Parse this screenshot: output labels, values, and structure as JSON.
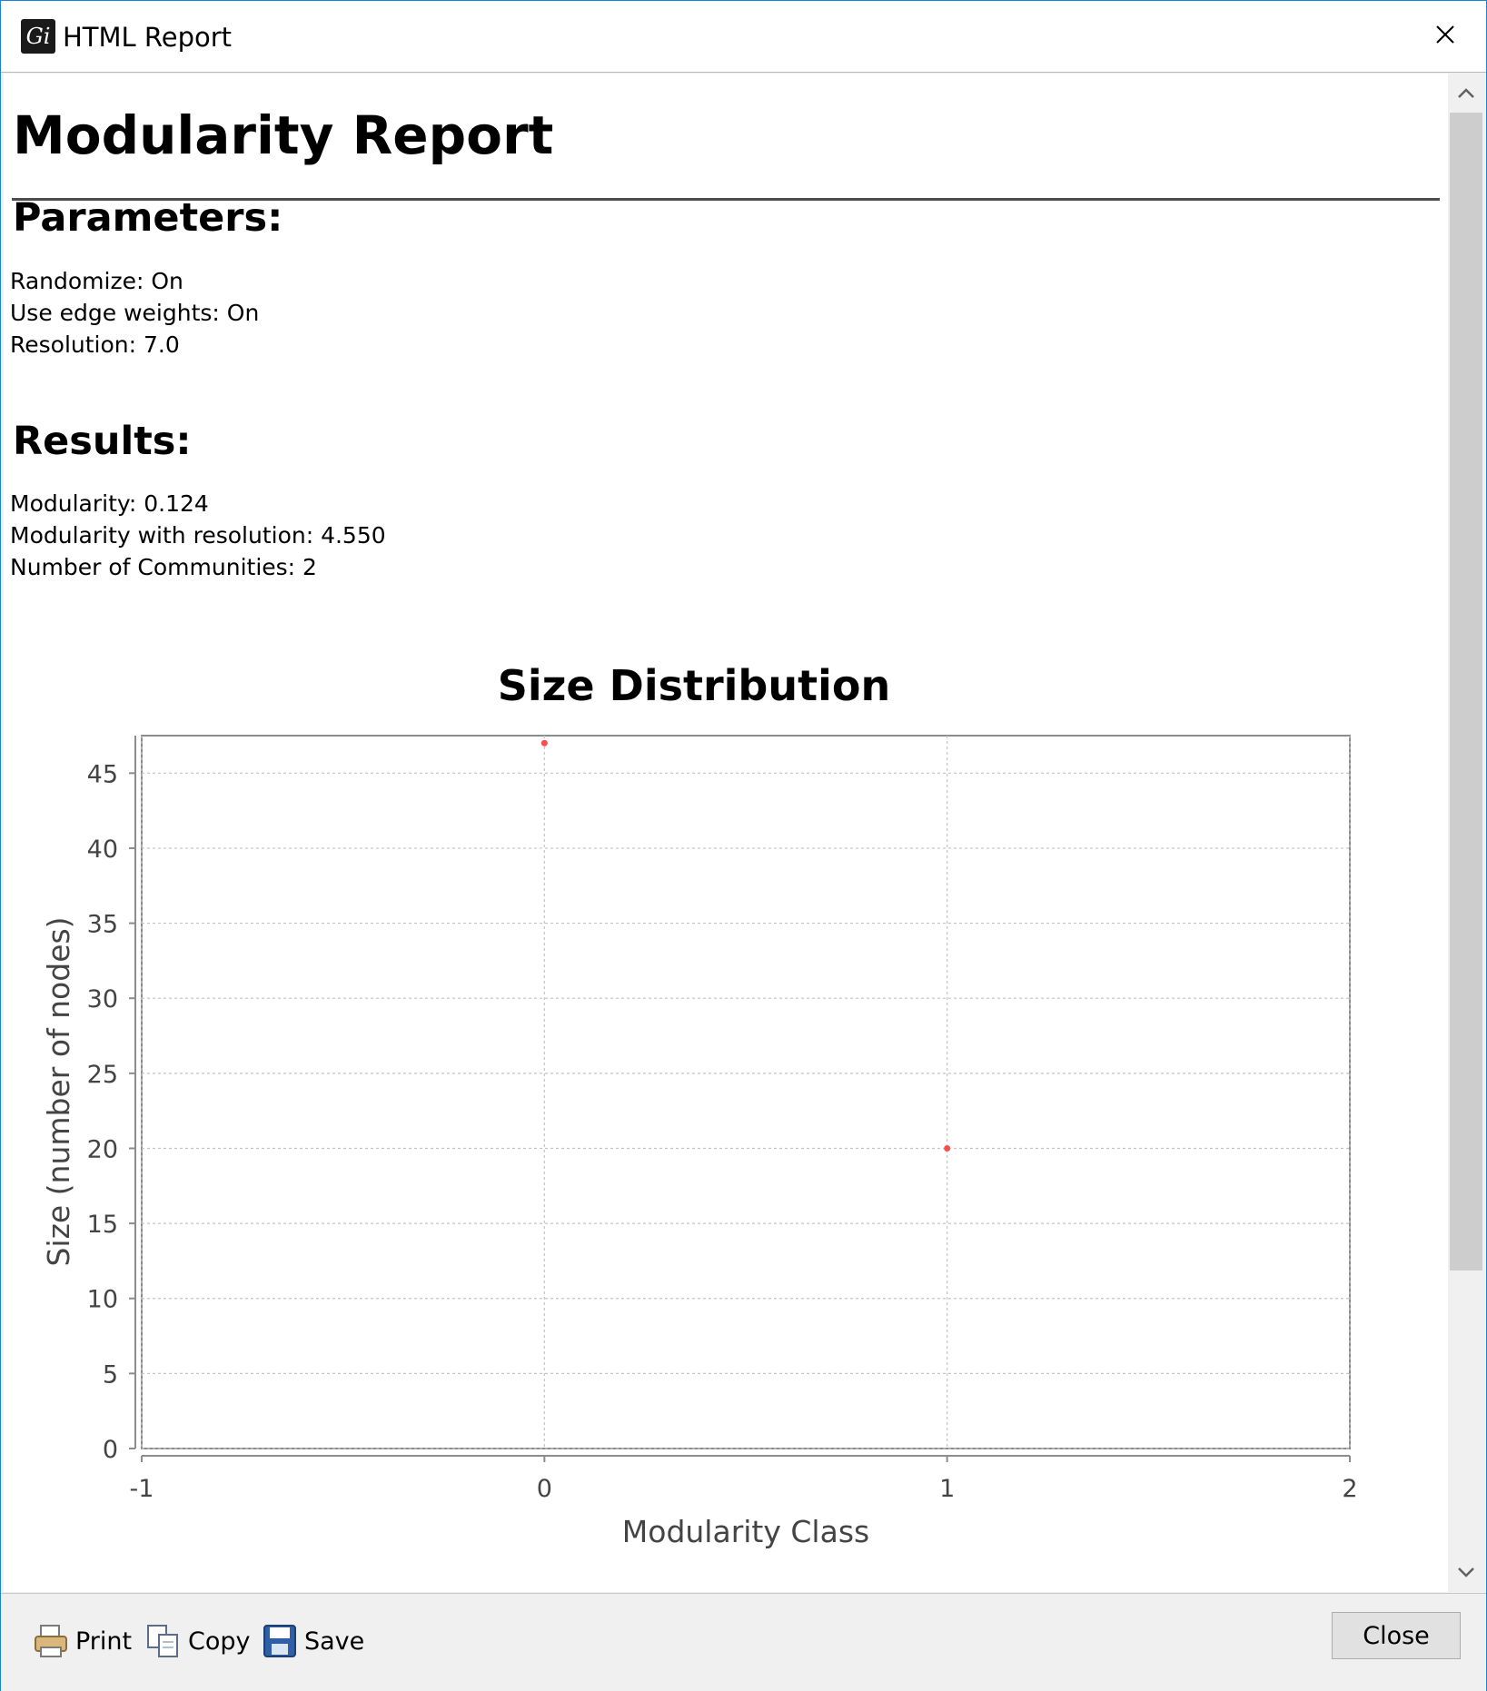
{
  "window": {
    "title": "HTML Report",
    "icon": "gephi-app-icon",
    "close_icon": "close-icon"
  },
  "report": {
    "title": "Modularity Report",
    "parameters_heading": "Parameters:",
    "parameters": [
      "Randomize: On",
      "Use edge weights: On",
      "Resolution: 7.0"
    ],
    "results_heading": "Results:",
    "results": [
      "Modularity: 0.124",
      "Modularity with resolution: 4.550",
      "Number of Communities: 2"
    ]
  },
  "chart_data": {
    "type": "scatter",
    "title": "Size Distribution",
    "xlabel": "Modularity Class",
    "ylabel": "Size (number of nodes)",
    "xlim": [
      -1,
      2
    ],
    "ylim": [
      0,
      47.5
    ],
    "xticks": [
      "-1",
      "0",
      "1",
      "2"
    ],
    "yticks": [
      "0",
      "5",
      "10",
      "15",
      "20",
      "25",
      "30",
      "35",
      "40",
      "45"
    ],
    "grid": true,
    "point_color": "#ff4d4d",
    "points": [
      {
        "x": 0,
        "y": 47
      },
      {
        "x": 1,
        "y": 20
      }
    ]
  },
  "toolbar": {
    "print_label": "Print",
    "copy_label": "Copy",
    "save_label": "Save",
    "close_label": "Close"
  }
}
